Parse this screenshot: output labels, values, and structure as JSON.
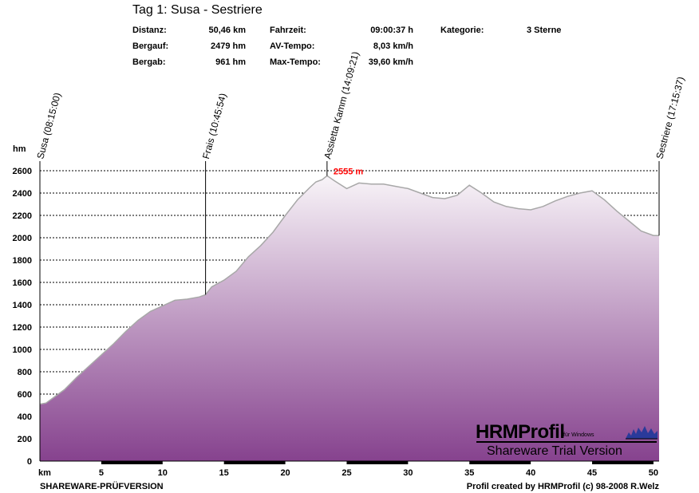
{
  "header": {
    "title": "Tag 1: Susa - Sestriere",
    "stats": [
      {
        "label": "Distanz:",
        "value": "50,46 km"
      },
      {
        "label": "Bergauf:",
        "value": "2479 hm"
      },
      {
        "label": "Bergab:",
        "value": "961 hm"
      },
      {
        "label": "Fahrzeit:",
        "value": "09:00:37 h"
      },
      {
        "label": "AV-Tempo:",
        "value": "8,03 km/h"
      },
      {
        "label": "Max-Tempo:",
        "value": "39,60 km/h"
      },
      {
        "label": "Kategorie:",
        "value": "3 Sterne"
      }
    ]
  },
  "footer": {
    "left": "SHAREWARE-PRÜFVERSION",
    "right": "Profil created by HRMProfil (c) 98-2008 R.Welz"
  },
  "watermark": {
    "brand": "HRMProfil",
    "sub": "für Windows",
    "trial": "Shareware Trial  Version"
  },
  "chart_data": {
    "type": "area",
    "xlabel": "km",
    "ylabel": "hm",
    "xlim": [
      0,
      50.46
    ],
    "ylim": [
      0,
      2600
    ],
    "x_ticks": [
      5,
      10,
      15,
      20,
      25,
      30,
      35,
      40,
      45,
      50
    ],
    "y_ticks": [
      0,
      200,
      400,
      600,
      800,
      1000,
      1200,
      1400,
      1600,
      1800,
      2000,
      2200,
      2400,
      2600
    ],
    "grid": true,
    "colors": {
      "fill_top": "#f8f4f8",
      "fill_bottom": "#86428e",
      "line": "#a8a8a8",
      "peak": "#ff0000"
    },
    "series": [
      {
        "x": [
          0,
          0.5,
          1,
          2,
          3,
          4,
          5,
          6,
          7,
          8,
          9,
          10,
          11,
          12,
          13,
          13.5,
          14,
          15,
          16,
          17,
          18,
          19,
          20,
          21,
          22,
          22.5,
          23,
          23.4,
          24,
          25,
          26,
          27,
          28,
          29,
          30,
          31,
          32,
          33,
          34,
          35,
          36,
          37,
          38,
          39,
          40,
          41,
          42,
          43,
          44,
          45,
          46,
          47,
          48,
          49,
          50,
          50.46
        ],
        "y": [
          510,
          520,
          560,
          640,
          750,
          850,
          950,
          1050,
          1160,
          1260,
          1340,
          1390,
          1440,
          1450,
          1470,
          1490,
          1560,
          1620,
          1700,
          1830,
          1930,
          2050,
          2200,
          2340,
          2450,
          2500,
          2520,
          2555,
          2510,
          2440,
          2490,
          2480,
          2480,
          2460,
          2440,
          2400,
          2360,
          2350,
          2380,
          2470,
          2400,
          2320,
          2280,
          2260,
          2250,
          2280,
          2330,
          2370,
          2400,
          2420,
          2340,
          2240,
          2150,
          2060,
          2020,
          2020
        ]
      }
    ],
    "waypoints": [
      {
        "x": 0,
        "label": "Susa (08:15:00)"
      },
      {
        "x": 13.5,
        "label": "Frais (10:45:54)"
      },
      {
        "x": 23.4,
        "label": "Assietta Kamm (14:09:21)"
      },
      {
        "x": 50.46,
        "label": "Sestriere (17:15:37)"
      }
    ],
    "peak_label": "2555 m"
  }
}
